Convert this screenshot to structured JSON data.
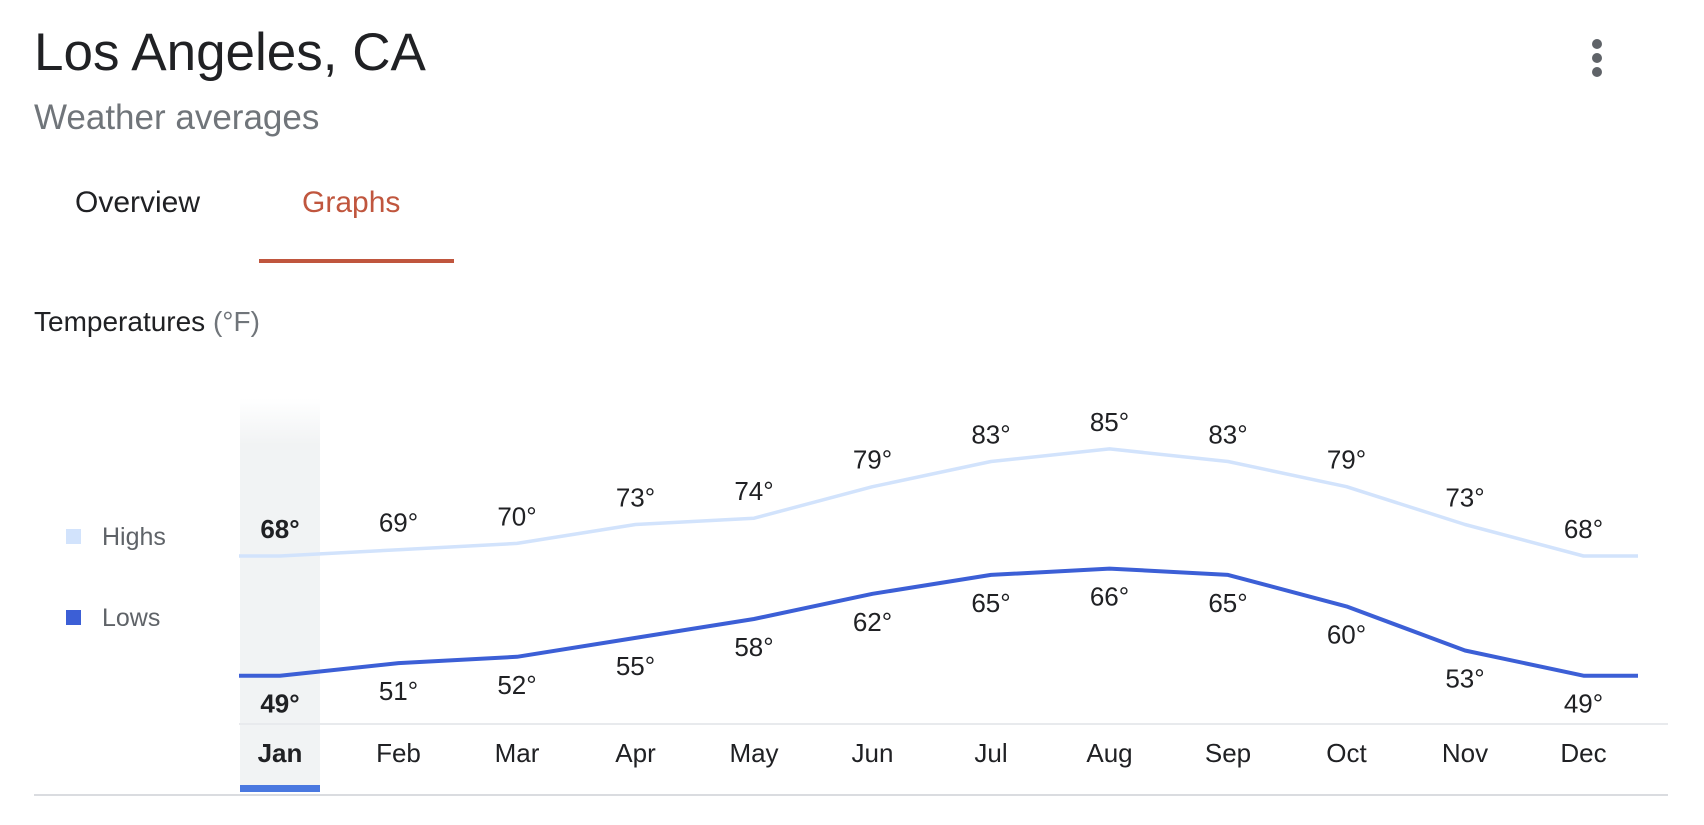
{
  "header": {
    "title": "Los Angeles, CA",
    "subtitle": "Weather averages",
    "menu_icon": "more-vert-icon"
  },
  "tabs": [
    {
      "label": "Overview",
      "active": false
    },
    {
      "label": "Graphs",
      "active": true
    }
  ],
  "section": {
    "title": "Temperatures",
    "unit": "(°F)"
  },
  "colors": {
    "highs": "#d2e3fc",
    "lows": "#3c5fd6",
    "active_tab": "#c0563e",
    "selected": "#4a78e0"
  },
  "chart_data": {
    "type": "line",
    "categories": [
      "Jan",
      "Feb",
      "Mar",
      "Apr",
      "May",
      "Jun",
      "Jul",
      "Aug",
      "Sep",
      "Oct",
      "Nov",
      "Dec"
    ],
    "series": [
      {
        "name": "Highs",
        "values": [
          68,
          69,
          70,
          73,
          74,
          79,
          83,
          85,
          83,
          79,
          73,
          68
        ]
      },
      {
        "name": "Lows",
        "values": [
          49,
          51,
          52,
          55,
          58,
          62,
          65,
          66,
          65,
          60,
          53,
          49
        ]
      }
    ],
    "unit": "°",
    "selected_category": "Jan",
    "legend": "left",
    "grid": false
  }
}
